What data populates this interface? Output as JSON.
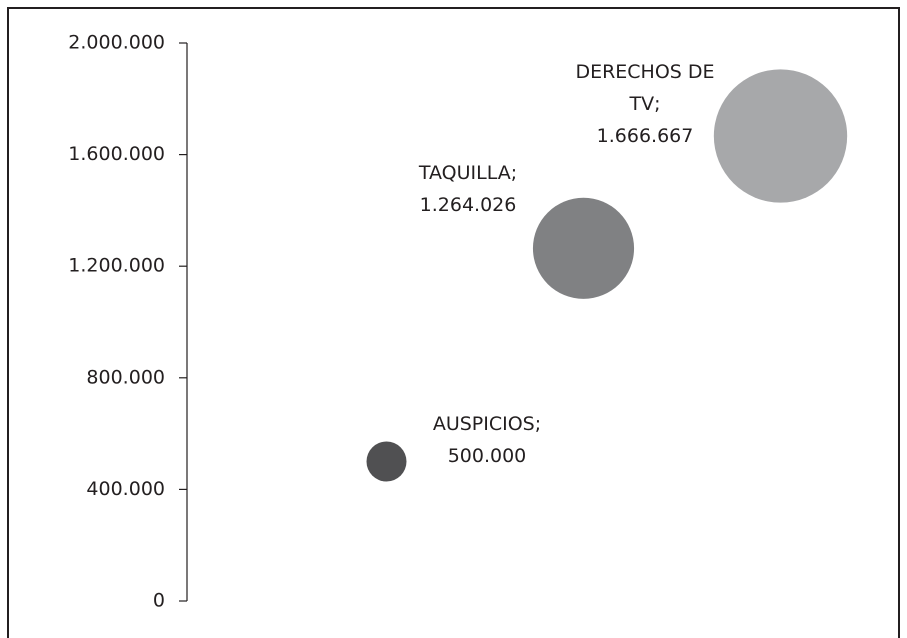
{
  "chart_data": {
    "type": "bubble",
    "categories": [
      "AUSPICIOS;",
      "TAQUILLA;",
      "DERECHOS DE TV;"
    ],
    "series": [
      {
        "colors": [
          "#505052",
          "#808183",
          "#a7a8aa"
        ],
        "values": [
          500000,
          1264026,
          1666667
        ],
        "value_labels": [
          "500.000",
          "1.264.026",
          "1.666.667"
        ]
      }
    ],
    "ylim": [
      0,
      2000000
    ],
    "yticks": [
      {
        "value": 0,
        "label": "0"
      },
      {
        "value": 400000,
        "label": "400.000"
      },
      {
        "value": 800000,
        "label": "800.000"
      },
      {
        "value": 1200000,
        "label": "1.200.000"
      },
      {
        "value": 1600000,
        "label": "1.600.000"
      },
      {
        "value": 2000000,
        "label": "2.000.000"
      }
    ]
  }
}
